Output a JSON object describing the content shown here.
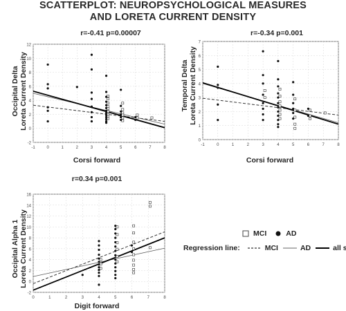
{
  "header": {
    "title_line1": "SCATTERPLOT: NEUROPSYCHOLOGICAL MEASURES",
    "title_line2": "AND LORETA CURRENT DENSITY"
  },
  "legend": {
    "mci_label": "MCI",
    "ad_label": "AD",
    "regression_label": "Regression line:",
    "line_mci": "MCI",
    "line_ad": "AD",
    "line_all": "all sbj"
  },
  "chart_data": [
    {
      "type": "scatter",
      "stat": "r=-0.41  p=0.00007",
      "ylabel_line1": "Occipital Delta",
      "ylabel_line2": "Loreta Current Density",
      "xlabel": "Corsi forward",
      "xlim": [
        -1,
        8
      ],
      "ylim": [
        -2,
        12
      ],
      "xticks": [
        -1,
        0,
        1,
        2,
        3,
        4,
        5,
        6,
        7,
        8
      ],
      "yticks": [
        -2,
        0,
        2,
        4,
        6,
        8,
        10,
        12
      ],
      "ad_points": [
        [
          0,
          9.1
        ],
        [
          0,
          6.3
        ],
        [
          0,
          5.7
        ],
        [
          0,
          3.0
        ],
        [
          0,
          2.5
        ],
        [
          0,
          1.0
        ],
        [
          2,
          5.9
        ],
        [
          3,
          10.5
        ],
        [
          3,
          8.4
        ],
        [
          3,
          5.1
        ],
        [
          3,
          4.2
        ],
        [
          3,
          3.1
        ],
        [
          3,
          2.3
        ],
        [
          3,
          1.6
        ],
        [
          3,
          1.0
        ],
        [
          4,
          7.5
        ],
        [
          4,
          5.2
        ],
        [
          4,
          4.5
        ],
        [
          4,
          3.8
        ],
        [
          4,
          3.3
        ],
        [
          4,
          2.9
        ],
        [
          4,
          2.5
        ],
        [
          4,
          2.2
        ],
        [
          4,
          1.9
        ],
        [
          4,
          1.6
        ],
        [
          4,
          1.3
        ],
        [
          4,
          1.0
        ],
        [
          4,
          0.8
        ],
        [
          5,
          5.5
        ],
        [
          5,
          3.2
        ],
        [
          5,
          2.4
        ],
        [
          5,
          2.0
        ],
        [
          5,
          1.6
        ],
        [
          5,
          1.2
        ],
        [
          6,
          1.6
        ],
        [
          6,
          1.2
        ]
      ],
      "mci_points": [
        [
          4,
          4.6
        ],
        [
          4,
          4.2
        ],
        [
          4,
          3.6
        ],
        [
          4,
          3.1
        ],
        [
          4,
          2.8
        ],
        [
          4,
          2.4
        ],
        [
          4,
          2.0
        ],
        [
          4,
          1.7
        ],
        [
          4,
          1.4
        ],
        [
          5,
          3.6
        ],
        [
          5,
          2.7
        ],
        [
          5,
          2.2
        ],
        [
          5,
          1.9
        ],
        [
          5,
          1.5
        ],
        [
          5,
          1.1
        ],
        [
          6,
          1.9
        ],
        [
          6,
          1.5
        ],
        [
          7,
          1.5
        ]
      ],
      "lines": {
        "all": [
          [
            -1,
            5.3
          ],
          [
            8,
            0.1
          ]
        ],
        "ad": [
          [
            -1,
            5.0
          ],
          [
            8,
            0.6
          ]
        ],
        "mci": [
          [
            -1,
            3.3
          ],
          [
            8,
            1.0
          ]
        ]
      }
    },
    {
      "type": "scatter",
      "stat": "r=-0.34  p=0.001",
      "ylabel_line1": "Temporal Delta",
      "ylabel_line2": "Loreta Current Density",
      "xlabel": "Corsi forward",
      "xlim": [
        -1,
        8
      ],
      "ylim": [
        0,
        7
      ],
      "xticks": [
        -1,
        0,
        1,
        2,
        3,
        4,
        5,
        6,
        7,
        8
      ],
      "yticks": [
        0,
        1,
        2,
        3,
        4,
        5,
        6,
        7
      ],
      "ad_points": [
        [
          0,
          5.2
        ],
        [
          0,
          3.9
        ],
        [
          0,
          3.7
        ],
        [
          0,
          2.5
        ],
        [
          0,
          1.4
        ],
        [
          3,
          6.3
        ],
        [
          3,
          4.6
        ],
        [
          3,
          4.0
        ],
        [
          3,
          3.2
        ],
        [
          3,
          2.6
        ],
        [
          3,
          2.2
        ],
        [
          3,
          1.8
        ],
        [
          3,
          1.4
        ],
        [
          4,
          5.6
        ],
        [
          4,
          4.3
        ],
        [
          4,
          3.8
        ],
        [
          4,
          3.3
        ],
        [
          4,
          3.0
        ],
        [
          4,
          2.6
        ],
        [
          4,
          2.3
        ],
        [
          4,
          2.0
        ],
        [
          4,
          1.7
        ],
        [
          4,
          1.4
        ],
        [
          4,
          1.1
        ],
        [
          4,
          0.9
        ],
        [
          5,
          4.1
        ],
        [
          5,
          3.2
        ],
        [
          5,
          2.6
        ],
        [
          5,
          2.2
        ],
        [
          5,
          1.9
        ],
        [
          5,
          1.5
        ],
        [
          6,
          2.2
        ],
        [
          6,
          1.7
        ]
      ],
      "mci_points": [
        [
          3,
          3.5
        ],
        [
          3,
          3.0
        ],
        [
          4,
          3.6
        ],
        [
          4,
          3.1
        ],
        [
          4,
          2.7
        ],
        [
          4,
          2.4
        ],
        [
          4,
          2.1
        ],
        [
          4,
          1.8
        ],
        [
          4,
          1.5
        ],
        [
          5,
          2.9
        ],
        [
          5,
          2.1
        ],
        [
          5,
          1.6
        ],
        [
          5,
          1.1
        ],
        [
          5,
          0.8
        ],
        [
          6,
          2.1
        ],
        [
          6,
          1.7
        ],
        [
          6,
          1.5
        ],
        [
          7,
          1.9
        ]
      ],
      "lines": {
        "all": [
          [
            -1,
            4.05
          ],
          [
            8,
            1.1
          ]
        ],
        "ad": [
          [
            -1,
            4.0
          ],
          [
            8,
            1.2
          ]
        ],
        "mci": [
          [
            -1,
            2.95
          ],
          [
            8,
            1.75
          ]
        ]
      }
    },
    {
      "type": "scatter",
      "stat": "r=0.34  p=0.001",
      "ylabel_line1": "Occipital Alpha 1",
      "ylabel_line2": "Loreta Current Density",
      "xlabel": "Digit forward",
      "xlim": [
        0,
        8
      ],
      "ylim": [
        -2,
        16
      ],
      "xticks": [
        0,
        1,
        2,
        3,
        4,
        5,
        6,
        7,
        8
      ],
      "yticks": [
        -2,
        0,
        2,
        4,
        6,
        8,
        10,
        12,
        14,
        16
      ],
      "ad_points": [
        [
          3,
          1.2
        ],
        [
          4,
          7.4
        ],
        [
          4,
          6.6
        ],
        [
          4,
          5.8
        ],
        [
          4,
          4.9
        ],
        [
          4,
          4.2
        ],
        [
          4,
          3.6
        ],
        [
          4,
          3.1
        ],
        [
          4,
          2.6
        ],
        [
          4,
          2.1
        ],
        [
          4,
          1.6
        ],
        [
          4,
          1.0
        ],
        [
          4,
          -0.6
        ],
        [
          5,
          10.2
        ],
        [
          5,
          9.6
        ],
        [
          5,
          8.8
        ],
        [
          5,
          8.0
        ],
        [
          5,
          7.2
        ],
        [
          5,
          6.4
        ],
        [
          5,
          5.6
        ],
        [
          5,
          4.8
        ],
        [
          5,
          4.0
        ],
        [
          5,
          3.3
        ],
        [
          5,
          2.6
        ],
        [
          5,
          1.9
        ],
        [
          5,
          1.2
        ],
        [
          5,
          0.6
        ],
        [
          6,
          6.6
        ],
        [
          6,
          5.4
        ]
      ],
      "mci_points": [
        [
          4,
          4.0
        ],
        [
          4,
          3.2
        ],
        [
          4,
          2.4
        ],
        [
          5,
          10.0
        ],
        [
          5,
          8.6
        ],
        [
          5,
          7.1
        ],
        [
          5,
          5.9
        ],
        [
          5,
          4.6
        ],
        [
          5,
          3.6
        ],
        [
          6,
          10.2
        ],
        [
          6,
          8.9
        ],
        [
          6,
          7.2
        ],
        [
          6,
          6.0
        ],
        [
          6,
          4.9
        ],
        [
          6,
          3.9
        ],
        [
          6,
          3.0
        ],
        [
          6,
          2.2
        ],
        [
          6,
          1.6
        ],
        [
          7,
          14.5
        ],
        [
          7,
          13.8
        ],
        [
          7,
          6.2
        ]
      ],
      "lines": {
        "all": [
          [
            0,
            -1.6
          ],
          [
            8,
            8.0
          ]
        ],
        "ad": [
          [
            0,
            0.9
          ],
          [
            8,
            6.1
          ]
        ],
        "mci": [
          [
            0,
            -0.4
          ],
          [
            8,
            9.1
          ]
        ]
      }
    }
  ]
}
